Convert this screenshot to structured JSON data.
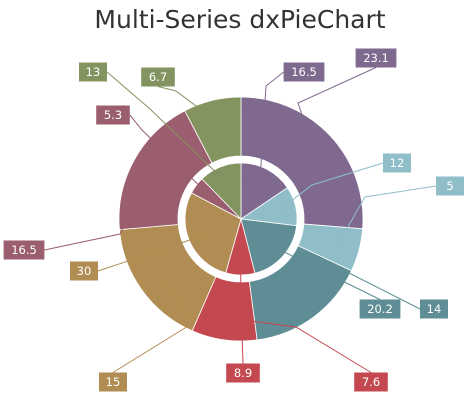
{
  "chart_data": {
    "type": "pie",
    "variant": "nested-donut",
    "title": "Multi-Series dxPieChart",
    "outer_series": {
      "values": [
        23.1,
        5,
        14,
        7.6,
        15,
        16.5,
        6.7
      ],
      "colors": [
        "#80698f",
        "#8fbdc8",
        "#5e8d95",
        "#c4484f",
        "#b28d53",
        "#9a5e6f",
        "#849461"
      ]
    },
    "inner_series": {
      "values": [
        16.5,
        12,
        20.2,
        8.9,
        30,
        5.3,
        13
      ],
      "colors": [
        "#80698f",
        "#8fbdc8",
        "#5e8d95",
        "#c4484f",
        "#b28d53",
        "#9a5e6f",
        "#849461"
      ]
    },
    "legend": "none"
  }
}
